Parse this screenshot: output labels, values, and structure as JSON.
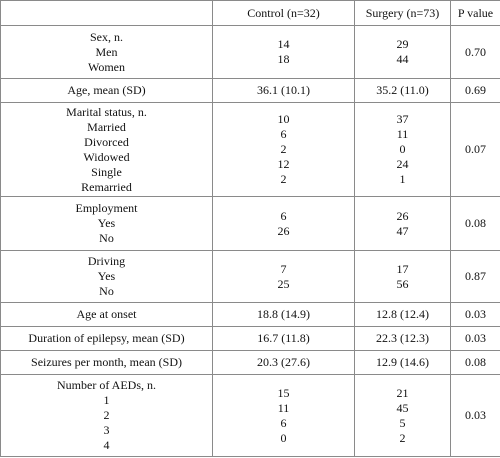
{
  "table": {
    "header": [
      "Control (n=32)",
      "Surgery (n=73)",
      "P value"
    ],
    "rows": [
      {
        "label": [
          "Sex, n.",
          "Men",
          "Women"
        ],
        "control": [
          "14",
          "18"
        ],
        "surgery": [
          "29",
          "44"
        ],
        "p_value": "0.70"
      },
      {
        "label": [
          "Age, mean (SD)"
        ],
        "control": [
          "36.1 (10.1)"
        ],
        "surgery": [
          "35.2 (11.0)"
        ],
        "p_value": "0.69"
      },
      {
        "label": [
          "Marital status, n.",
          "Married",
          "Divorced",
          "Widowed",
          "Single",
          "Remarried"
        ],
        "control": [
          "10",
          "6",
          "2",
          "12",
          "2"
        ],
        "surgery": [
          "37",
          "11",
          "0",
          "24",
          "1"
        ],
        "p_value": "0.07"
      },
      {
        "label": [
          "Employment",
          "Yes",
          "No"
        ],
        "control": [
          "6",
          "26"
        ],
        "surgery": [
          "26",
          "47"
        ],
        "p_value": "0.08"
      },
      {
        "label": [
          "Driving",
          "Yes",
          "No"
        ],
        "control": [
          "7",
          "25"
        ],
        "surgery": [
          "17",
          "56"
        ],
        "p_value": "0.87"
      },
      {
        "label": [
          "Age at onset"
        ],
        "control": [
          "18.8 (14.9)"
        ],
        "surgery": [
          "12.8 (12.4)"
        ],
        "p_value": "0.03"
      },
      {
        "label": [
          "Duration of epilepsy, mean (SD)"
        ],
        "control": [
          "16.7 (11.8)"
        ],
        "surgery": [
          "22.3 (12.3)"
        ],
        "p_value": "0.03"
      },
      {
        "label": [
          "Seizures per month, mean (SD)"
        ],
        "control": [
          "20.3 (27.6)"
        ],
        "surgery": [
          "12.9 (14.6)"
        ],
        "p_value": "0.08"
      },
      {
        "label": [
          "Number of AEDs, n.",
          "1",
          "2",
          "3",
          "4"
        ],
        "control": [
          "15",
          "11",
          "6",
          "0"
        ],
        "surgery": [
          "21",
          "45",
          "5",
          "2"
        ],
        "p_value": "0.03"
      }
    ]
  }
}
